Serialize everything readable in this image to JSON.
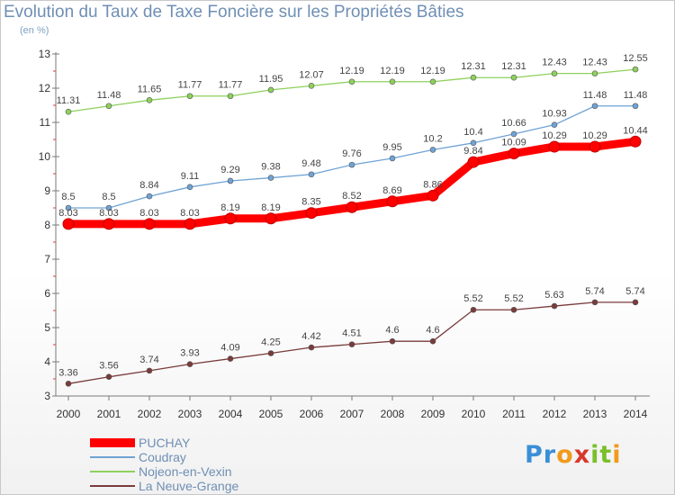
{
  "title": "Evolution du Taux de Taxe Foncière sur les Propriétés Bâties",
  "subtitle": "(en %)",
  "logo": {
    "text": "Proxiti"
  },
  "chart_data": {
    "type": "line",
    "title": "Evolution du Taux de Taxe Foncière sur les Propriétés Bâties",
    "ylabel": "(en %)",
    "xlabel": "",
    "ylim": [
      3,
      13
    ],
    "y_ticks": [
      "3",
      "4",
      "5",
      "6",
      "7",
      "8",
      "9",
      "10",
      "11",
      "12",
      "13"
    ],
    "x": [
      "2000",
      "2001",
      "2002",
      "2003",
      "2004",
      "2005",
      "2006",
      "2007",
      "2008",
      "2009",
      "2010",
      "2011",
      "2012",
      "2013",
      "2014"
    ],
    "grid": false,
    "legend": "bottom-left",
    "series": [
      {
        "name": "PUCHAY",
        "color": "#ff0000",
        "values": [
          8.03,
          8.03,
          8.03,
          8.03,
          8.19,
          8.19,
          8.35,
          8.52,
          8.69,
          8.86,
          9.84,
          10.09,
          10.29,
          10.29,
          10.44
        ],
        "labels": [
          "8.03",
          "8.03",
          "8.03",
          "8.03",
          "8.19",
          "8.19",
          "8.35",
          "8.52",
          "8.69",
          "8.86",
          "9.84",
          "10.09",
          "10.29",
          "10.29",
          "10.44"
        ]
      },
      {
        "name": "Coudray",
        "color": "#6fa3d5",
        "values": [
          8.5,
          8.5,
          8.84,
          9.11,
          9.29,
          9.38,
          9.48,
          9.76,
          9.95,
          10.2,
          10.4,
          10.66,
          10.93,
          11.48,
          11.48
        ],
        "labels": [
          "8.5",
          "8.5",
          "8.84",
          "9.11",
          "9.29",
          "9.38",
          "9.48",
          "9.76",
          "9.95",
          "10.2",
          "10.4",
          "10.66",
          "10.93",
          "11.48",
          "11.48"
        ]
      },
      {
        "name": "Nojeon-en-Vexin",
        "color": "#8ed05c",
        "values": [
          11.31,
          11.48,
          11.65,
          11.77,
          11.77,
          11.95,
          12.07,
          12.19,
          12.19,
          12.19,
          12.31,
          12.31,
          12.43,
          12.43,
          12.55
        ],
        "labels": [
          "11.31",
          "11.48",
          "11.65",
          "11.77",
          "11.77",
          "11.95",
          "12.07",
          "12.19",
          "12.19",
          "12.19",
          "12.31",
          "12.31",
          "12.43",
          "12.43",
          "12.55"
        ]
      },
      {
        "name": "La Neuve-Grange",
        "color": "#7a3b3b",
        "values": [
          3.36,
          3.56,
          3.74,
          3.93,
          4.09,
          4.25,
          4.42,
          4.51,
          4.6,
          4.6,
          5.52,
          5.52,
          5.63,
          5.74,
          5.74
        ],
        "labels": [
          "3.36",
          "3.56",
          "3.74",
          "3.93",
          "4.09",
          "4.25",
          "4.42",
          "4.51",
          "4.6",
          "4.6",
          "5.52",
          "5.52",
          "5.63",
          "5.74",
          "5.74"
        ]
      }
    ]
  }
}
